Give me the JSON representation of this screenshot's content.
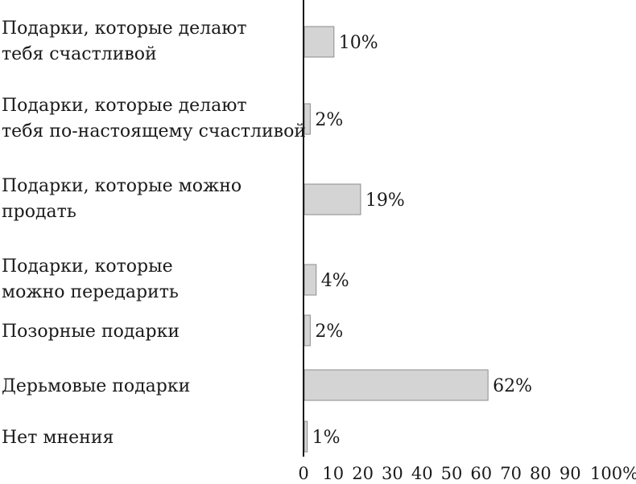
{
  "chart_data": {
    "type": "bar",
    "orientation": "horizontal",
    "categories": [
      [
        "Подарки, которые делают",
        "тебя счастливой"
      ],
      [
        "Подарки, которые делают",
        "тебя по-настоящему счастливой"
      ],
      [
        "Подарки, которые можно",
        "продать"
      ],
      [
        "Подарки, которые",
        "можно передарить"
      ],
      [
        "Позорные подарки"
      ],
      [
        "Дерьмовые подарки"
      ],
      [
        "Нет мнения"
      ]
    ],
    "values": [
      10,
      2,
      19,
      4,
      2,
      62,
      1
    ],
    "value_labels": [
      "10%",
      "2%",
      "19%",
      "4%",
      "2%",
      "62%",
      "1%"
    ],
    "xlim": [
      0,
      100
    ],
    "x_ticks": [
      "0",
      "10",
      "20",
      "30",
      "40",
      "50",
      "60",
      "70",
      "80",
      "90",
      "100%"
    ],
    "title": "",
    "xlabel": "",
    "ylabel": "",
    "grid": false,
    "colors": {
      "bar_fill": "#d4d4d4",
      "bar_stroke": "#8c8c8c",
      "axis": "#1a1a1a",
      "text": "#1a1a1a"
    }
  }
}
